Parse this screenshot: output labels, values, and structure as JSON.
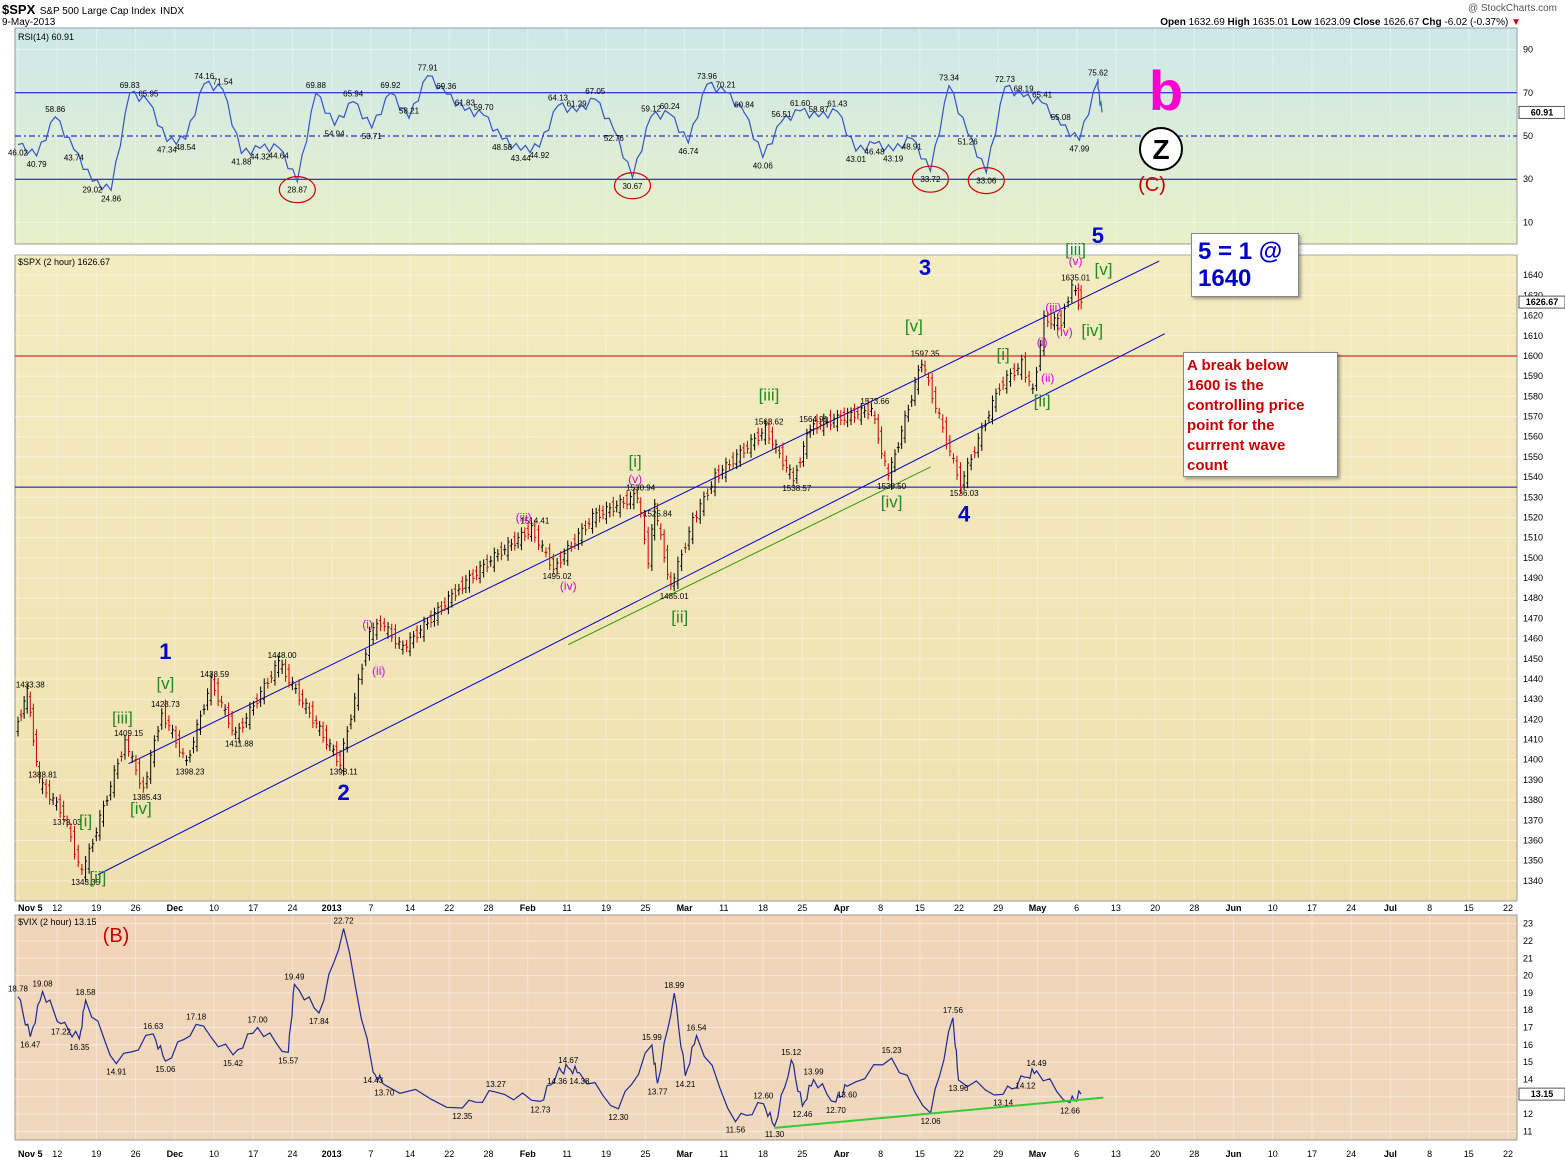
{
  "header": {
    "symbol": "$SPX",
    "name": "S&P 500 Large Cap Index",
    "exchange": "INDX",
    "date": "9-May-2013",
    "watermark": "@ StockCharts.com",
    "ohlc": {
      "open_label": "Open",
      "open": "1632.69",
      "high_label": "High",
      "high": "1635.01",
      "low_label": "Low",
      "low": "1623.09",
      "close_label": "Close",
      "close": "1626.67",
      "chg_label": "Chg",
      "chg": "-6.02 (-0.37%)"
    }
  },
  "annotations": {
    "target_box": "5 = 1 @\n1640",
    "break_box": "A break below\n1600 is the\ncontrolling price\npoint for the\ncurrrent wave\ncount",
    "b_label": "b",
    "z_label": "Z",
    "c_label": "(C)",
    "vix_b_label": "(B)"
  },
  "x_axis_labels": [
    "Nov 5",
    "12",
    "19",
    "26",
    "Dec",
    "10",
    "17",
    "24",
    "2013",
    "7",
    "14",
    "22",
    "28",
    "Feb",
    "11",
    "19",
    "25",
    "Mar",
    "11",
    "18",
    "25",
    "Apr",
    "8",
    "15",
    "22",
    "29",
    "May",
    "6",
    "13",
    "20",
    "28",
    "Jun",
    "10",
    "17",
    "24",
    "Jul",
    "8",
    "15",
    "22"
  ],
  "chart_data": [
    {
      "type": "line",
      "panel": "RSI",
      "legend": "RSI(14) 60.91",
      "ylim": [
        0,
        100
      ],
      "yticks": [
        10,
        30,
        50,
        70,
        90
      ],
      "levels": [
        30,
        50,
        70
      ],
      "last_value": "60.91",
      "peak_labels": [
        "46.02",
        "40.79",
        "58.86",
        "43.74",
        "29.02",
        "24.86",
        "69.83",
        "65.95",
        "47.34",
        "48.54",
        "74.16",
        "71.54",
        "41.88",
        "44.32",
        "44.64",
        "28.87",
        "69.88",
        "54.94",
        "65.94",
        "53.71",
        "69.92",
        "58.21",
        "77.91",
        "69.36",
        "61.83",
        "59.70",
        "48.58",
        "43.44",
        "44.92",
        "64.13",
        "61.29",
        "67.05",
        "52.76",
        "30.67",
        "59.12",
        "60.24",
        "46.74",
        "73.96",
        "70.21",
        "60.84",
        "40.06",
        "56.51",
        "61.60",
        "58.87",
        "61.43",
        "43.01",
        "46.48",
        "43.19",
        "48.91",
        "33.72",
        "73.34",
        "51.26",
        "33.06",
        "72.73",
        "68.19",
        "65.41",
        "55.08",
        "47.99",
        "75.62"
      ],
      "circled_lows": [
        "28.87",
        "30.67",
        "33.72",
        "33.06"
      ]
    },
    {
      "type": "candlestick",
      "panel": "price",
      "legend": "$SPX (2 hour) 1626.67",
      "ylim": [
        1330,
        1650
      ],
      "yticks": [
        1340,
        1350,
        1360,
        1370,
        1380,
        1390,
        1400,
        1410,
        1420,
        1430,
        1440,
        1450,
        1460,
        1470,
        1480,
        1490,
        1500,
        1510,
        1520,
        1530,
        1540,
        1550,
        1560,
        1570,
        1580,
        1590,
        1600,
        1610,
        1620,
        1630,
        1640
      ],
      "last_value": "1626.67",
      "horizontal_lines": [
        1600,
        1535
      ],
      "key_points": [
        {
          "date": "2012-11-05",
          "value": 1414.0
        },
        {
          "date": "2012-11-07",
          "value": 1433.38
        },
        {
          "date": "2012-11-09",
          "value": 1388.81
        },
        {
          "date": "2012-11-13",
          "value": 1373.03
        },
        {
          "date": "2012-11-16",
          "value": 1343.35
        },
        {
          "date": "2012-11-23",
          "value": 1409.15
        },
        {
          "date": "2012-11-26",
          "value": 1385.43
        },
        {
          "date": "2012-11-29",
          "value": 1423.73
        },
        {
          "date": "2012-12-03",
          "value": 1398.23
        },
        {
          "date": "2012-12-07",
          "value": 1438.59
        },
        {
          "date": "2012-12-11",
          "value": 1411.88
        },
        {
          "date": "2012-12-18",
          "value": 1448.0
        },
        {
          "date": "2012-12-28",
          "value": 1398.11
        },
        {
          "date": "2013-01-02",
          "value": 1462.0
        },
        {
          "date": "2013-01-04",
          "value": 1468.0
        },
        {
          "date": "2013-01-08",
          "value": 1455.0
        },
        {
          "date": "2013-01-18",
          "value": 1485.0
        },
        {
          "date": "2013-01-25",
          "value": 1502.0
        },
        {
          "date": "2013-01-31",
          "value": 1514.41
        },
        {
          "date": "2013-02-04",
          "value": 1495.02
        },
        {
          "date": "2013-02-11",
          "value": 1520.0
        },
        {
          "date": "2013-02-19",
          "value": 1530.94
        },
        {
          "date": "2013-02-21",
          "value": 1499.0
        },
        {
          "date": "2013-02-22",
          "value": 1525.84
        },
        {
          "date": "2013-02-25",
          "value": 1485.01
        },
        {
          "date": "2013-03-01",
          "value": 1518.0
        },
        {
          "date": "2013-03-05",
          "value": 1540.0
        },
        {
          "date": "2013-03-14",
          "value": 1563.62
        },
        {
          "date": "2013-03-19",
          "value": 1538.57
        },
        {
          "date": "2013-03-22",
          "value": 1564.91
        },
        {
          "date": "2013-04-02",
          "value": 1573.66
        },
        {
          "date": "2013-04-05",
          "value": 1539.5
        },
        {
          "date": "2013-04-11",
          "value": 1597.35
        },
        {
          "date": "2013-04-18",
          "value": 1536.03
        },
        {
          "date": "2013-04-25",
          "value": 1585.0
        },
        {
          "date": "2013-04-29",
          "value": 1596.0
        },
        {
          "date": "2013-05-01",
          "value": 1582.0
        },
        {
          "date": "2013-05-03",
          "value": 1618.0
        },
        {
          "date": "2013-05-06",
          "value": 1617.0
        },
        {
          "date": "2013-05-08",
          "value": 1635.01
        },
        {
          "date": "2013-05-09",
          "value": 1626.67
        }
      ],
      "value_labels": [
        "1433.38",
        "1388.81",
        "1373.03",
        "1343.35",
        "1409.15",
        "1385.43",
        "1423.73",
        "1398.23",
        "1438.59",
        "1411.88",
        "1448.00",
        "1398.11",
        "1514.41",
        "1495.02",
        "1530.94",
        "1525.84",
        "1485.01",
        "1563.62",
        "1538.57",
        "1564.91",
        "1573.66",
        "1539.50",
        "1597.35",
        "1536.03",
        "1635.01"
      ],
      "wave_labels": [
        "1",
        "2",
        "3",
        "4",
        "5",
        "[i]",
        "[ii]",
        "[iii]",
        "[iv]",
        "[v]",
        "(i)",
        "(ii)",
        "(iii)",
        "(iv)",
        "(v)"
      ]
    },
    {
      "type": "line",
      "panel": "VIX",
      "legend": "$VIX (2 hour) 13.15",
      "ylim": [
        10.5,
        23.5
      ],
      "yticks": [
        11,
        12,
        13,
        14,
        15,
        16,
        17,
        18,
        19,
        20,
        21,
        22,
        23
      ],
      "last_value": "13.15",
      "key_points": [
        {
          "date": "2012-11-05",
          "value": 18.78
        },
        {
          "date": "2012-11-07",
          "value": 16.47
        },
        {
          "date": "2012-11-09",
          "value": 19.08
        },
        {
          "date": "2012-11-12",
          "value": 17.22
        },
        {
          "date": "2012-11-15",
          "value": 16.35
        },
        {
          "date": "2012-11-16",
          "value": 18.58
        },
        {
          "date": "2012-11-21",
          "value": 14.91
        },
        {
          "date": "2012-11-27",
          "value": 16.63
        },
        {
          "date": "2012-11-29",
          "value": 15.06
        },
        {
          "date": "2012-12-04",
          "value": 17.18
        },
        {
          "date": "2012-12-10",
          "value": 15.42
        },
        {
          "date": "2012-12-14",
          "value": 17.0
        },
        {
          "date": "2012-12-19",
          "value": 15.57
        },
        {
          "date": "2012-12-20",
          "value": 19.49
        },
        {
          "date": "2012-12-24",
          "value": 17.84
        },
        {
          "date": "2012-12-28",
          "value": 22.72
        },
        {
          "date": "2013-01-02",
          "value": 14.43
        },
        {
          "date": "2013-01-04",
          "value": 13.7
        },
        {
          "date": "2013-01-18",
          "value": 12.35
        },
        {
          "date": "2013-01-24",
          "value": 13.27
        },
        {
          "date": "2013-02-01",
          "value": 12.73
        },
        {
          "date": "2013-02-04",
          "value": 14.36
        },
        {
          "date": "2013-02-06",
          "value": 14.67
        },
        {
          "date": "2013-02-08",
          "value": 14.38
        },
        {
          "date": "2013-02-15",
          "value": 12.3
        },
        {
          "date": "2013-02-21",
          "value": 15.99
        },
        {
          "date": "2013-02-22",
          "value": 13.77
        },
        {
          "date": "2013-02-25",
          "value": 18.99
        },
        {
          "date": "2013-02-27",
          "value": 14.21
        },
        {
          "date": "2013-03-01",
          "value": 16.54
        },
        {
          "date": "2013-03-08",
          "value": 11.56
        },
        {
          "date": "2013-03-13",
          "value": 12.6
        },
        {
          "date": "2013-03-15",
          "value": 11.3
        },
        {
          "date": "2013-03-18",
          "value": 15.12
        },
        {
          "date": "2013-03-20",
          "value": 12.46
        },
        {
          "date": "2013-03-22",
          "value": 13.99
        },
        {
          "date": "2013-03-26",
          "value": 12.7
        },
        {
          "date": "2013-03-28",
          "value": 13.6
        },
        {
          "date": "2013-04-05",
          "value": 15.23
        },
        {
          "date": "2013-04-12",
          "value": 12.06
        },
        {
          "date": "2013-04-16",
          "value": 17.56
        },
        {
          "date": "2013-04-17",
          "value": 13.96
        },
        {
          "date": "2013-04-25",
          "value": 13.14
        },
        {
          "date": "2013-04-29",
          "value": 14.12
        },
        {
          "date": "2013-05-01",
          "value": 14.49
        },
        {
          "date": "2013-05-07",
          "value": 12.66
        },
        {
          "date": "2013-05-09",
          "value": 13.15
        }
      ],
      "value_labels": [
        "18.78",
        "16.47",
        "19.08",
        "17.22",
        "16.35",
        "18.58",
        "14.91",
        "16.63",
        "15.06",
        "17.18",
        "15.42",
        "17.00",
        "15.57",
        "19.49",
        "17.84",
        "22.72",
        "14.43",
        "13.70",
        "12.35",
        "13.27",
        "12.73",
        "14.36",
        "14.67",
        "14.38",
        "12.30",
        "15.99",
        "13.77",
        "18.99",
        "14.21",
        "16.54",
        "11.56",
        "12.60",
        "11.30",
        "15.12",
        "12.46",
        "13.99",
        "12.70",
        "13.60",
        "15.23",
        "12.06",
        "17.56",
        "13.96",
        "13.14",
        "14.12",
        "14.49",
        "12.66"
      ]
    }
  ],
  "colors": {
    "price_up": "#000000",
    "price_down": "#cc0000",
    "channel": "#0000cc",
    "green_line": "#339900",
    "support_line": "#33cc33",
    "wave_blue": "#0000cc",
    "wave_green": "#228b22",
    "wave_magenta": "#e000e0",
    "wave_red": "#cc0000",
    "rsi_bg": "#cfe8e8",
    "price_bg": "#f2e6b0",
    "vix_bg": "#f0d4b6"
  }
}
